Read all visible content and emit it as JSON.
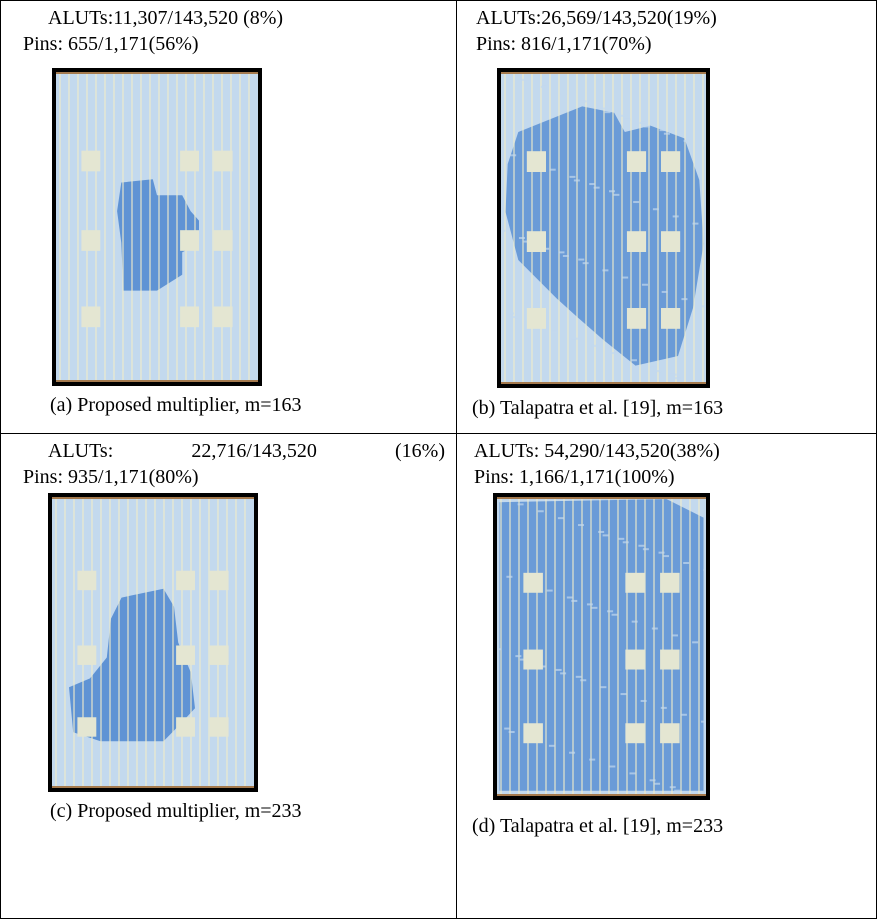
{
  "cells": [
    {
      "aluts": "ALUTs:11,307/143,520 (8%)",
      "pins": "Pins: 655/1,171(56%)",
      "caption": "(a) Proposed multiplier, m=163"
    },
    {
      "aluts": "ALUTs:26,569/143,520(19%)",
      "pins": "Pins: 816/1,171(70%)",
      "caption": "(b) Talapatra et al. [19], m=163"
    },
    {
      "aluts": "ALUTs:   22,716/143,520    (16%)",
      "pins": "Pins: 935/1,171(80%)",
      "caption": "(c) Proposed multiplier, m=233"
    },
    {
      "aluts": "ALUTs: 54,290/143,520(38%)",
      "pins": "Pins: 1,166/1,171(100%)",
      "caption": "(d) Talapatra et al. [19], m=233"
    }
  ]
}
